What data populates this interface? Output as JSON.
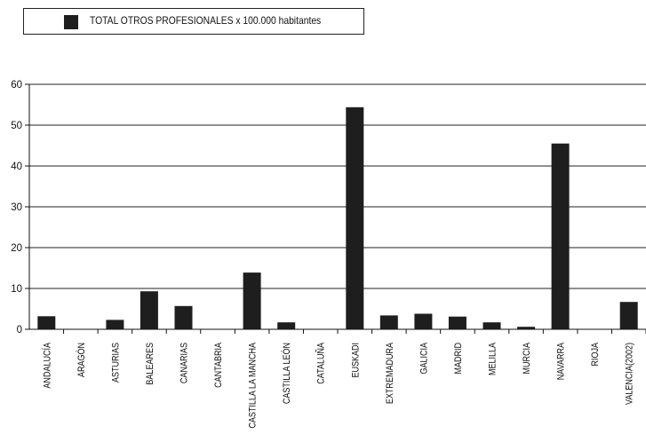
{
  "chart_data": {
    "type": "bar",
    "legend": {
      "entries": [
        "TOTAL OTROS PROFESIONALES x 100.000 habitantes"
      ],
      "placement": "top-left"
    },
    "categories": [
      "ANDALUCÍA",
      "ARAGÓN",
      "ASTURIAS",
      "BALEARES",
      "CANARIAS",
      "CANTABRIA",
      "CASTILLA LA MANCHA",
      "CASTILLA LEÓN",
      "CATALUÑA",
      "EUSKADI",
      "EXTREMADURA",
      "GALICIA",
      "MADRID",
      "MELILLA",
      "MURCIA",
      "NAVARRA",
      "RIOJA",
      "VALENCIA(2002)"
    ],
    "series": [
      {
        "name": "TOTAL OTROS PROFESIONALES x 100.000 habitantes",
        "values": [
          3.2,
          0,
          2.3,
          9.3,
          5.7,
          0,
          13.9,
          1.7,
          0,
          54.4,
          3.4,
          3.8,
          3.1,
          1.7,
          0.6,
          45.5,
          0,
          6.7
        ]
      }
    ],
    "ylim": [
      0,
      60
    ],
    "yticks": [
      0,
      10,
      20,
      30,
      40,
      50,
      60
    ],
    "grid": true,
    "colors": {
      "bar": "#1e1e1e",
      "grid": "#222222"
    }
  }
}
